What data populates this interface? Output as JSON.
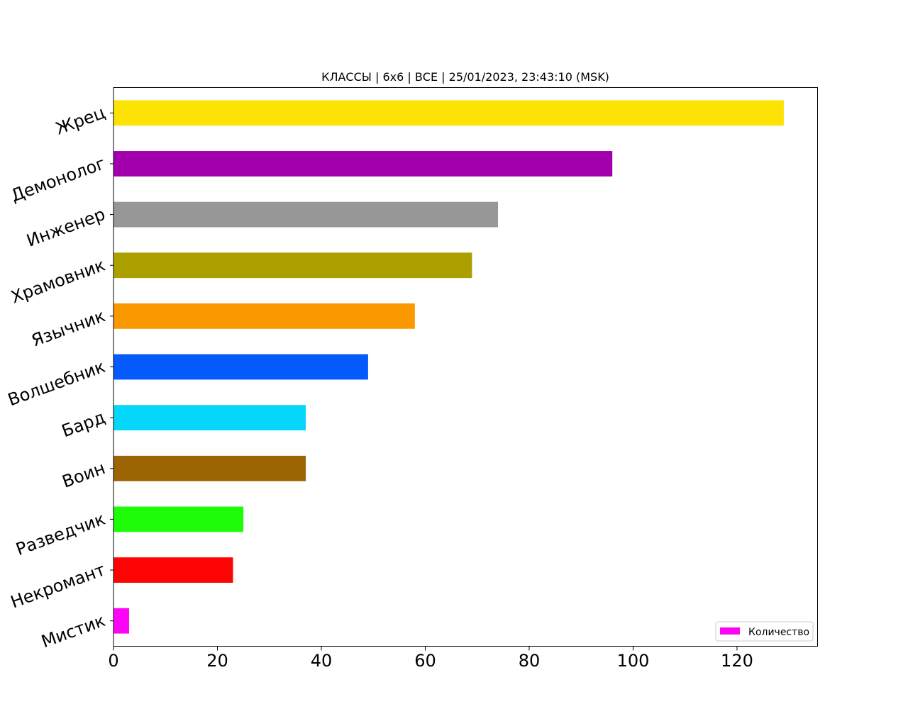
{
  "chart_data": {
    "type": "bar",
    "orientation": "horizontal",
    "title": "КЛАССЫ | 6x6 | ВСЕ | 25/01/2023, 23:43:10 (MSK)",
    "xlabel": "",
    "ylabel": "",
    "categories": [
      "Жрец",
      "Демонолог",
      "Инженер",
      "Храмовник",
      "Язычник",
      "Волшебник",
      "Бард",
      "Воин",
      "Разведчик",
      "Некромант",
      "Мистик"
    ],
    "values": [
      129,
      96,
      74,
      69,
      58,
      49,
      37,
      37,
      25,
      23,
      3
    ],
    "colors": [
      "#fce205",
      "#a200ac",
      "#979797",
      "#aca000",
      "#fa9800",
      "#055afb",
      "#05d7fb",
      "#9c6504",
      "#1efc0a",
      "#fc0404",
      "#fc05f4"
    ],
    "xlim": [
      0,
      135.5
    ],
    "xticks": [
      0,
      20,
      40,
      60,
      80,
      100,
      120
    ],
    "grid": false,
    "legend": {
      "position": "bottom-right",
      "entries": [
        {
          "label": "Количество",
          "color": "#fc05f4"
        }
      ]
    }
  }
}
